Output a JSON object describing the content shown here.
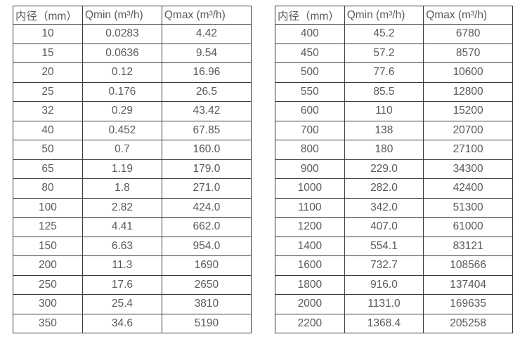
{
  "page": {
    "background_color": "#ffffff",
    "text_color": "#595959",
    "border_color": "#3a3a3a"
  },
  "tables": [
    {
      "name": "small-diameter-flow-table",
      "headers": [
        "内径（mm）",
        "Qmin (m³/h)",
        "Qmax (m³/h)"
      ],
      "rows": [
        [
          "10",
          "0.0283",
          "4.42"
        ],
        [
          "15",
          "0.0636",
          "9.54"
        ],
        [
          "20",
          "0.12",
          "16.96"
        ],
        [
          "25",
          "0.176",
          "26.5"
        ],
        [
          "32",
          "0.29",
          "43.42"
        ],
        [
          "40",
          "0.452",
          "67.85"
        ],
        [
          "50",
          "0.7",
          "160.0"
        ],
        [
          "65",
          "1.19",
          "179.0"
        ],
        [
          "80",
          "1.8",
          "271.0"
        ],
        [
          "100",
          "2.82",
          "424.0"
        ],
        [
          "125",
          "4.41",
          "662.0"
        ],
        [
          "150",
          "6.63",
          "954.0"
        ],
        [
          "200",
          "11.3",
          "1690"
        ],
        [
          "250",
          "17.6",
          "2650"
        ],
        [
          "300",
          "25.4",
          "3810"
        ],
        [
          "350",
          "34.6",
          "5190"
        ]
      ]
    },
    {
      "name": "large-diameter-flow-table",
      "headers": [
        "内径（mm）",
        "Qmin (m³/h)",
        "Qmax (m³/h)"
      ],
      "rows": [
        [
          "400",
          "45.2",
          "6780"
        ],
        [
          "450",
          "57.2",
          "8570"
        ],
        [
          "500",
          "77.6",
          "10600"
        ],
        [
          "550",
          "85.5",
          "12800"
        ],
        [
          "600",
          "110",
          "15200"
        ],
        [
          "700",
          "138",
          "20700"
        ],
        [
          "800",
          "180",
          "27100"
        ],
        [
          "900",
          "229.0",
          "34300"
        ],
        [
          "1000",
          "282.0",
          "42400"
        ],
        [
          "1100",
          "342.0",
          "51300"
        ],
        [
          "1200",
          "407.0",
          "61000"
        ],
        [
          "1400",
          "554.1",
          "83121"
        ],
        [
          "1600",
          "732.7",
          "108566"
        ],
        [
          "1800",
          "916.0",
          "137404"
        ],
        [
          "2000",
          "1131.0",
          "169635"
        ],
        [
          "2200",
          "1368.4",
          "205258"
        ]
      ]
    }
  ]
}
